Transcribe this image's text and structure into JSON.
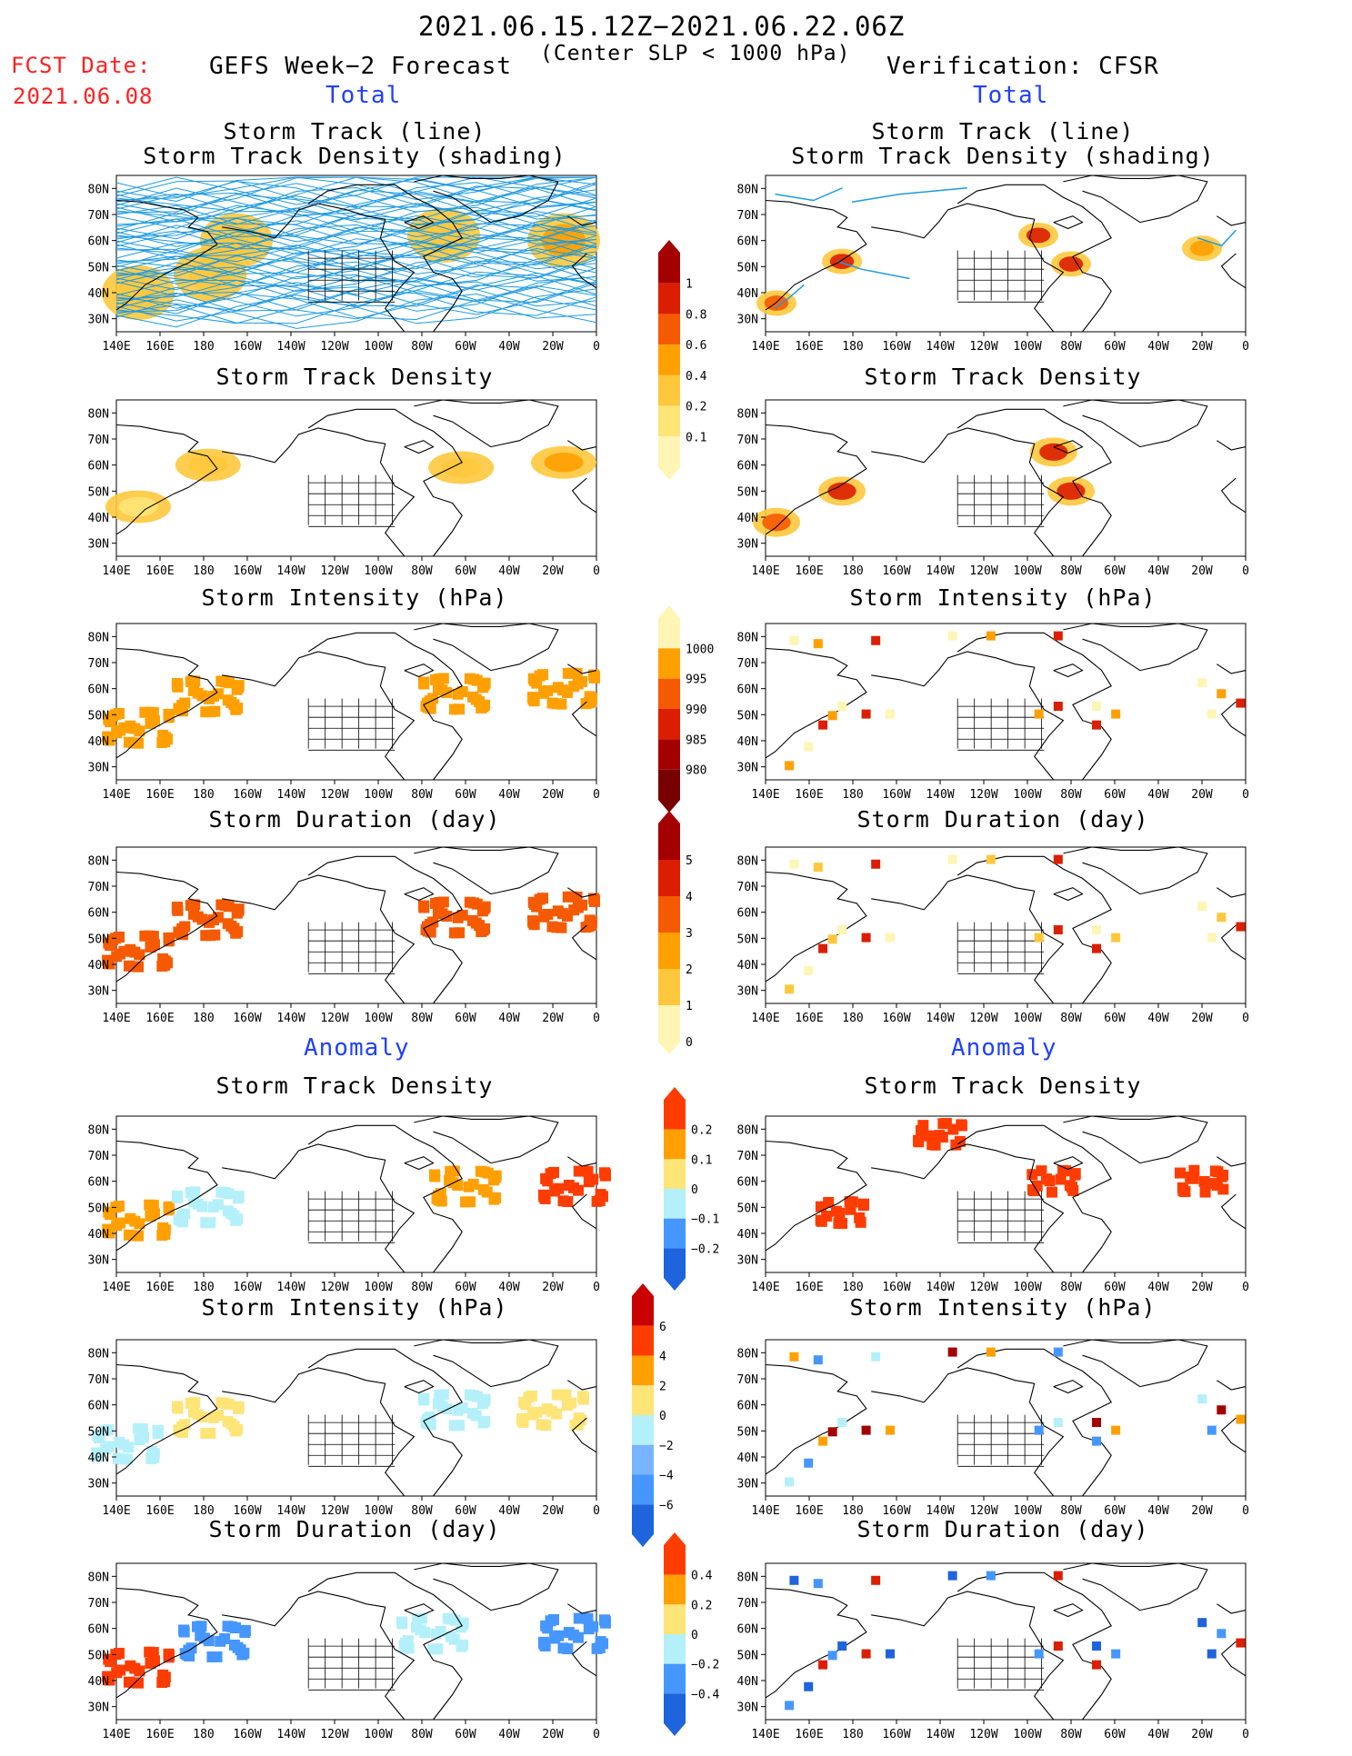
{
  "header": {
    "period": "2021.06.15.12Z−2021.06.22.06Z",
    "condition": "(Center SLP < 1000 hPa)",
    "fcst_label": "FCST Date:",
    "fcst_date": "2021.06.08",
    "left_title": "GEFS Week−2 Forecast",
    "right_title": "Verification: CFSR",
    "section_total": "Total",
    "section_anomaly": "Anomaly"
  },
  "panel_titles": {
    "track_line": "Storm Track (line)",
    "track_shading": "Storm Track Density (shading)",
    "density": "Storm Track Density",
    "intensity": "Storm Intensity (hPa)",
    "duration": "Storm Duration (day)"
  },
  "axes": {
    "x_ticks": [
      "140E",
      "160E",
      "180",
      "160W",
      "140W",
      "120W",
      "100W",
      "80W",
      "60W",
      "40W",
      "20W",
      "0"
    ],
    "y_ticks": [
      "80N",
      "70N",
      "60N",
      "50N",
      "40N",
      "30N"
    ],
    "x_range": [
      "140E",
      "0"
    ],
    "y_range": [
      "25N",
      "85N"
    ]
  },
  "colorbars": {
    "density_total": {
      "labels": [
        "1",
        "0.8",
        "0.6",
        "0.4",
        "0.2",
        "0.1"
      ],
      "colors": [
        "#a50000",
        "#dc1e00",
        "#f55a00",
        "#ffa000",
        "#ffc83c",
        "#ffe478",
        "#fff5b4"
      ]
    },
    "intensity_total": {
      "labels": [
        "1000",
        "995",
        "990",
        "985",
        "980"
      ],
      "colors": [
        "#fff5b4",
        "#ffa000",
        "#f55a00",
        "#dc1e00",
        "#a50000",
        "#780000"
      ]
    },
    "duration_total": {
      "labels": [
        "5",
        "4",
        "3",
        "2",
        "1",
        "0"
      ],
      "colors": [
        "#a50000",
        "#dc1e00",
        "#f55a00",
        "#ffa000",
        "#ffc83c",
        "#fff5b4"
      ]
    },
    "density_anom": {
      "labels": [
        "0.2",
        "0.1",
        "0",
        "−0.1",
        "−0.2"
      ],
      "colors": [
        "#ff3c00",
        "#ffa000",
        "#ffe478",
        "#b4f0fa",
        "#4696ff",
        "#1e64dc"
      ]
    },
    "intensity_anom": {
      "labels": [
        "6",
        "4",
        "2",
        "0",
        "−2",
        "−4",
        "−6"
      ],
      "colors": [
        "#c80000",
        "#ff3c00",
        "#ffa000",
        "#ffe478",
        "#b4f0fa",
        "#78b4ff",
        "#4696ff",
        "#1e64dc"
      ]
    },
    "duration_anom": {
      "labels": [
        "0.4",
        "0.2",
        "0",
        "−0.2",
        "−0.4"
      ],
      "colors": [
        "#ff3c00",
        "#ffa000",
        "#ffe478",
        "#b4f0fa",
        "#4696ff",
        "#1e64dc"
      ]
    }
  },
  "chart_data": [
    {
      "type": "heatmap",
      "panel": "gefs_total_track",
      "field": "storm track density with tracks",
      "regions": [
        {
          "lon": -177,
          "lat": 47,
          "v": 0.3
        },
        {
          "lon": -165,
          "lat": 60,
          "v": 0.2
        },
        {
          "lon": -70,
          "lat": 62,
          "v": 0.3
        },
        {
          "lon": -15,
          "lat": 60,
          "v": 0.4
        },
        {
          "lon": 150,
          "lat": 40,
          "v": 0.2
        }
      ],
      "tracks_region": {
        "lon": [
          140,
          360
        ],
        "lat": [
          25,
          85
        ]
      }
    },
    {
      "type": "heatmap",
      "panel": "cfsr_total_track",
      "field": "storm track density with tracks",
      "regions": [
        {
          "lon": 175,
          "lat": 52,
          "v": 1.0
        },
        {
          "lon": -95,
          "lat": 62,
          "v": 1.0
        },
        {
          "lon": -80,
          "lat": 51,
          "v": 1.0
        },
        {
          "lon": -20,
          "lat": 57,
          "v": 0.5
        },
        {
          "lon": 145,
          "lat": 36,
          "v": 0.6
        }
      ]
    },
    {
      "type": "heatmap",
      "panel": "gefs_total_density",
      "field": "Storm Track Density",
      "regions": [
        {
          "lon": 150,
          "lat": 44,
          "v": 0.15
        },
        {
          "lon": -178,
          "lat": 60,
          "v": 0.2
        },
        {
          "lon": -62,
          "lat": 59,
          "v": 0.3
        },
        {
          "lon": -15,
          "lat": 61,
          "v": 0.4
        }
      ]
    },
    {
      "type": "heatmap",
      "panel": "cfsr_total_density",
      "field": "Storm Track Density",
      "regions": [
        {
          "lon": 175,
          "lat": 50,
          "v": 1.0
        },
        {
          "lon": -88,
          "lat": 65,
          "v": 1.0
        },
        {
          "lon": -80,
          "lat": 50,
          "v": 1.0
        },
        {
          "lon": 145,
          "lat": 38,
          "v": 0.6
        }
      ]
    },
    {
      "type": "heatmap",
      "panel": "gefs_total_intensity",
      "field": "Storm Intensity (hPa)",
      "regions": [
        {
          "lon": 150,
          "lat": 45,
          "v": 993
        },
        {
          "lon": -178,
          "lat": 57,
          "v": 993
        },
        {
          "lon": -65,
          "lat": 58,
          "v": 993
        },
        {
          "lon": -15,
          "lat": 60,
          "v": 993
        }
      ]
    },
    {
      "type": "heatmap",
      "panel": "gefs_total_duration",
      "field": "Storm Duration (day)",
      "regions": [
        {
          "lon": 150,
          "lat": 45,
          "v": 2.5
        },
        {
          "lon": -178,
          "lat": 57,
          "v": 2.5
        },
        {
          "lon": -65,
          "lat": 58,
          "v": 2.5
        },
        {
          "lon": -15,
          "lat": 60,
          "v": 2.5
        }
      ]
    },
    {
      "type": "heatmap",
      "panel": "gefs_anom_density",
      "field": "Storm Track Density anomaly",
      "regions": [
        {
          "lon": 150,
          "lat": 45,
          "v": 0.05
        },
        {
          "lon": -178,
          "lat": 50,
          "v": -0.05
        },
        {
          "lon": -60,
          "lat": 58,
          "v": 0.05
        },
        {
          "lon": -10,
          "lat": 58,
          "v": 0.15
        }
      ]
    },
    {
      "type": "heatmap",
      "panel": "cfsr_anom_density",
      "field": "Storm Track Density anomaly",
      "regions": [
        {
          "lon": 175,
          "lat": 48,
          "v": 0.2
        },
        {
          "lon": -88,
          "lat": 60,
          "v": 0.2
        },
        {
          "lon": -20,
          "lat": 60,
          "v": 0.2
        },
        {
          "lon": -140,
          "lat": 78,
          "v": 0.2
        }
      ]
    },
    {
      "type": "heatmap",
      "panel": "gefs_anom_intensity",
      "field": "Storm Intensity anomaly (hPa)",
      "regions": [
        {
          "lon": 145,
          "lat": 45,
          "v": -1
        },
        {
          "lon": -178,
          "lat": 55,
          "v": 1
        },
        {
          "lon": -65,
          "lat": 58,
          "v": -1
        },
        {
          "lon": -20,
          "lat": 58,
          "v": 1
        }
      ]
    },
    {
      "type": "heatmap",
      "panel": "gefs_anom_duration",
      "field": "Storm Duration anomaly (day)",
      "regions": [
        {
          "lon": 150,
          "lat": 45,
          "v": 0.3
        },
        {
          "lon": -175,
          "lat": 55,
          "v": -0.4
        },
        {
          "lon": -75,
          "lat": 58,
          "v": -0.1
        },
        {
          "lon": -10,
          "lat": 58,
          "v": -0.3
        }
      ]
    }
  ]
}
